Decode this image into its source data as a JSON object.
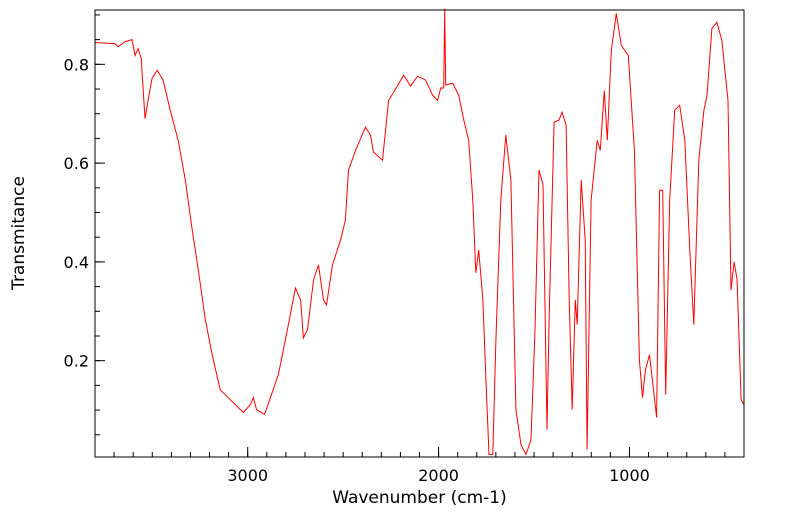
{
  "chart_data": {
    "type": "line",
    "title": "",
    "xlabel": "Wavenumber (cm-1)",
    "ylabel": "Transmitance",
    "xlim": [
      3800,
      400
    ],
    "ylim": [
      0.005,
      0.91
    ],
    "x_ticks": [
      3000,
      2000,
      1000
    ],
    "x_tick_labels": [
      "3000",
      "2000",
      "1000"
    ],
    "x_minor_step": 100,
    "y_ticks": [
      0.2,
      0.4,
      0.6,
      0.8
    ],
    "y_tick_labels": [
      "0.2",
      "0.4",
      "0.6",
      "0.8"
    ],
    "y_minor_step": 0.05,
    "grid": false,
    "legend": "none",
    "series": [
      {
        "name": "spectrum",
        "color": "#ff0000",
        "x": [
          3800,
          3695,
          3679,
          3642,
          3606,
          3590,
          3574,
          3558,
          3538,
          3522,
          3501,
          3474,
          3443,
          3406,
          3364,
          3327,
          3291,
          3259,
          3222,
          3186,
          3144,
          3091,
          3023,
          2986,
          2970,
          2954,
          2912,
          2881,
          2839,
          2792,
          2750,
          2723,
          2708,
          2687,
          2655,
          2629,
          2603,
          2587,
          2556,
          2514,
          2488,
          2472,
          2435,
          2383,
          2357,
          2341,
          2294,
          2262,
          2236,
          2183,
          2147,
          2110,
          2068,
          2031,
          2005,
          1989,
          1973,
          1968,
          1963,
          1926,
          1894,
          1868,
          1842,
          1821,
          1805,
          1790,
          1768,
          1752,
          1736,
          1716,
          1700,
          1674,
          1648,
          1621,
          1595,
          1568,
          1542,
          1516,
          1495,
          1474,
          1453,
          1432,
          1421,
          1395,
          1369,
          1353,
          1332,
          1316,
          1300,
          1284,
          1274,
          1253,
          1232,
          1222,
          1201,
          1169,
          1153,
          1132,
          1116,
          1095,
          1069,
          1043,
          1006,
          974,
          948,
          932,
          916,
          895,
          874,
          858,
          842,
          826,
          810,
          789,
          763,
          737,
          710,
          684,
          663,
          637,
          610,
          594,
          568,
          542,
          516,
          484,
          468,
          452,
          436,
          415,
          400
        ],
        "y": [
          0.844,
          0.842,
          0.836,
          0.846,
          0.85,
          0.818,
          0.832,
          0.812,
          0.69,
          0.727,
          0.772,
          0.788,
          0.768,
          0.707,
          0.646,
          0.566,
          0.465,
          0.384,
          0.283,
          0.212,
          0.141,
          0.121,
          0.095,
          0.111,
          0.125,
          0.101,
          0.091,
          0.125,
          0.172,
          0.263,
          0.347,
          0.323,
          0.246,
          0.263,
          0.364,
          0.394,
          0.323,
          0.313,
          0.394,
          0.444,
          0.485,
          0.586,
          0.626,
          0.673,
          0.657,
          0.622,
          0.606,
          0.727,
          0.743,
          0.778,
          0.756,
          0.776,
          0.768,
          0.737,
          0.727,
          0.752,
          0.752,
          0.913,
          0.758,
          0.762,
          0.737,
          0.687,
          0.646,
          0.525,
          0.378,
          0.424,
          0.323,
          0.162,
          0.01,
          0.01,
          0.242,
          0.525,
          0.657,
          0.566,
          0.101,
          0.03,
          0.01,
          0.04,
          0.263,
          0.586,
          0.556,
          0.06,
          0.283,
          0.683,
          0.687,
          0.703,
          0.677,
          0.323,
          0.101,
          0.323,
          0.273,
          0.566,
          0.444,
          0.02,
          0.525,
          0.646,
          0.626,
          0.747,
          0.646,
          0.828,
          0.903,
          0.838,
          0.818,
          0.626,
          0.202,
          0.125,
          0.182,
          0.212,
          0.141,
          0.085,
          0.545,
          0.545,
          0.131,
          0.525,
          0.707,
          0.717,
          0.646,
          0.424,
          0.273,
          0.606,
          0.707,
          0.737,
          0.873,
          0.885,
          0.848,
          0.727,
          0.343,
          0.4,
          0.364,
          0.121,
          0.111
        ]
      }
    ]
  }
}
